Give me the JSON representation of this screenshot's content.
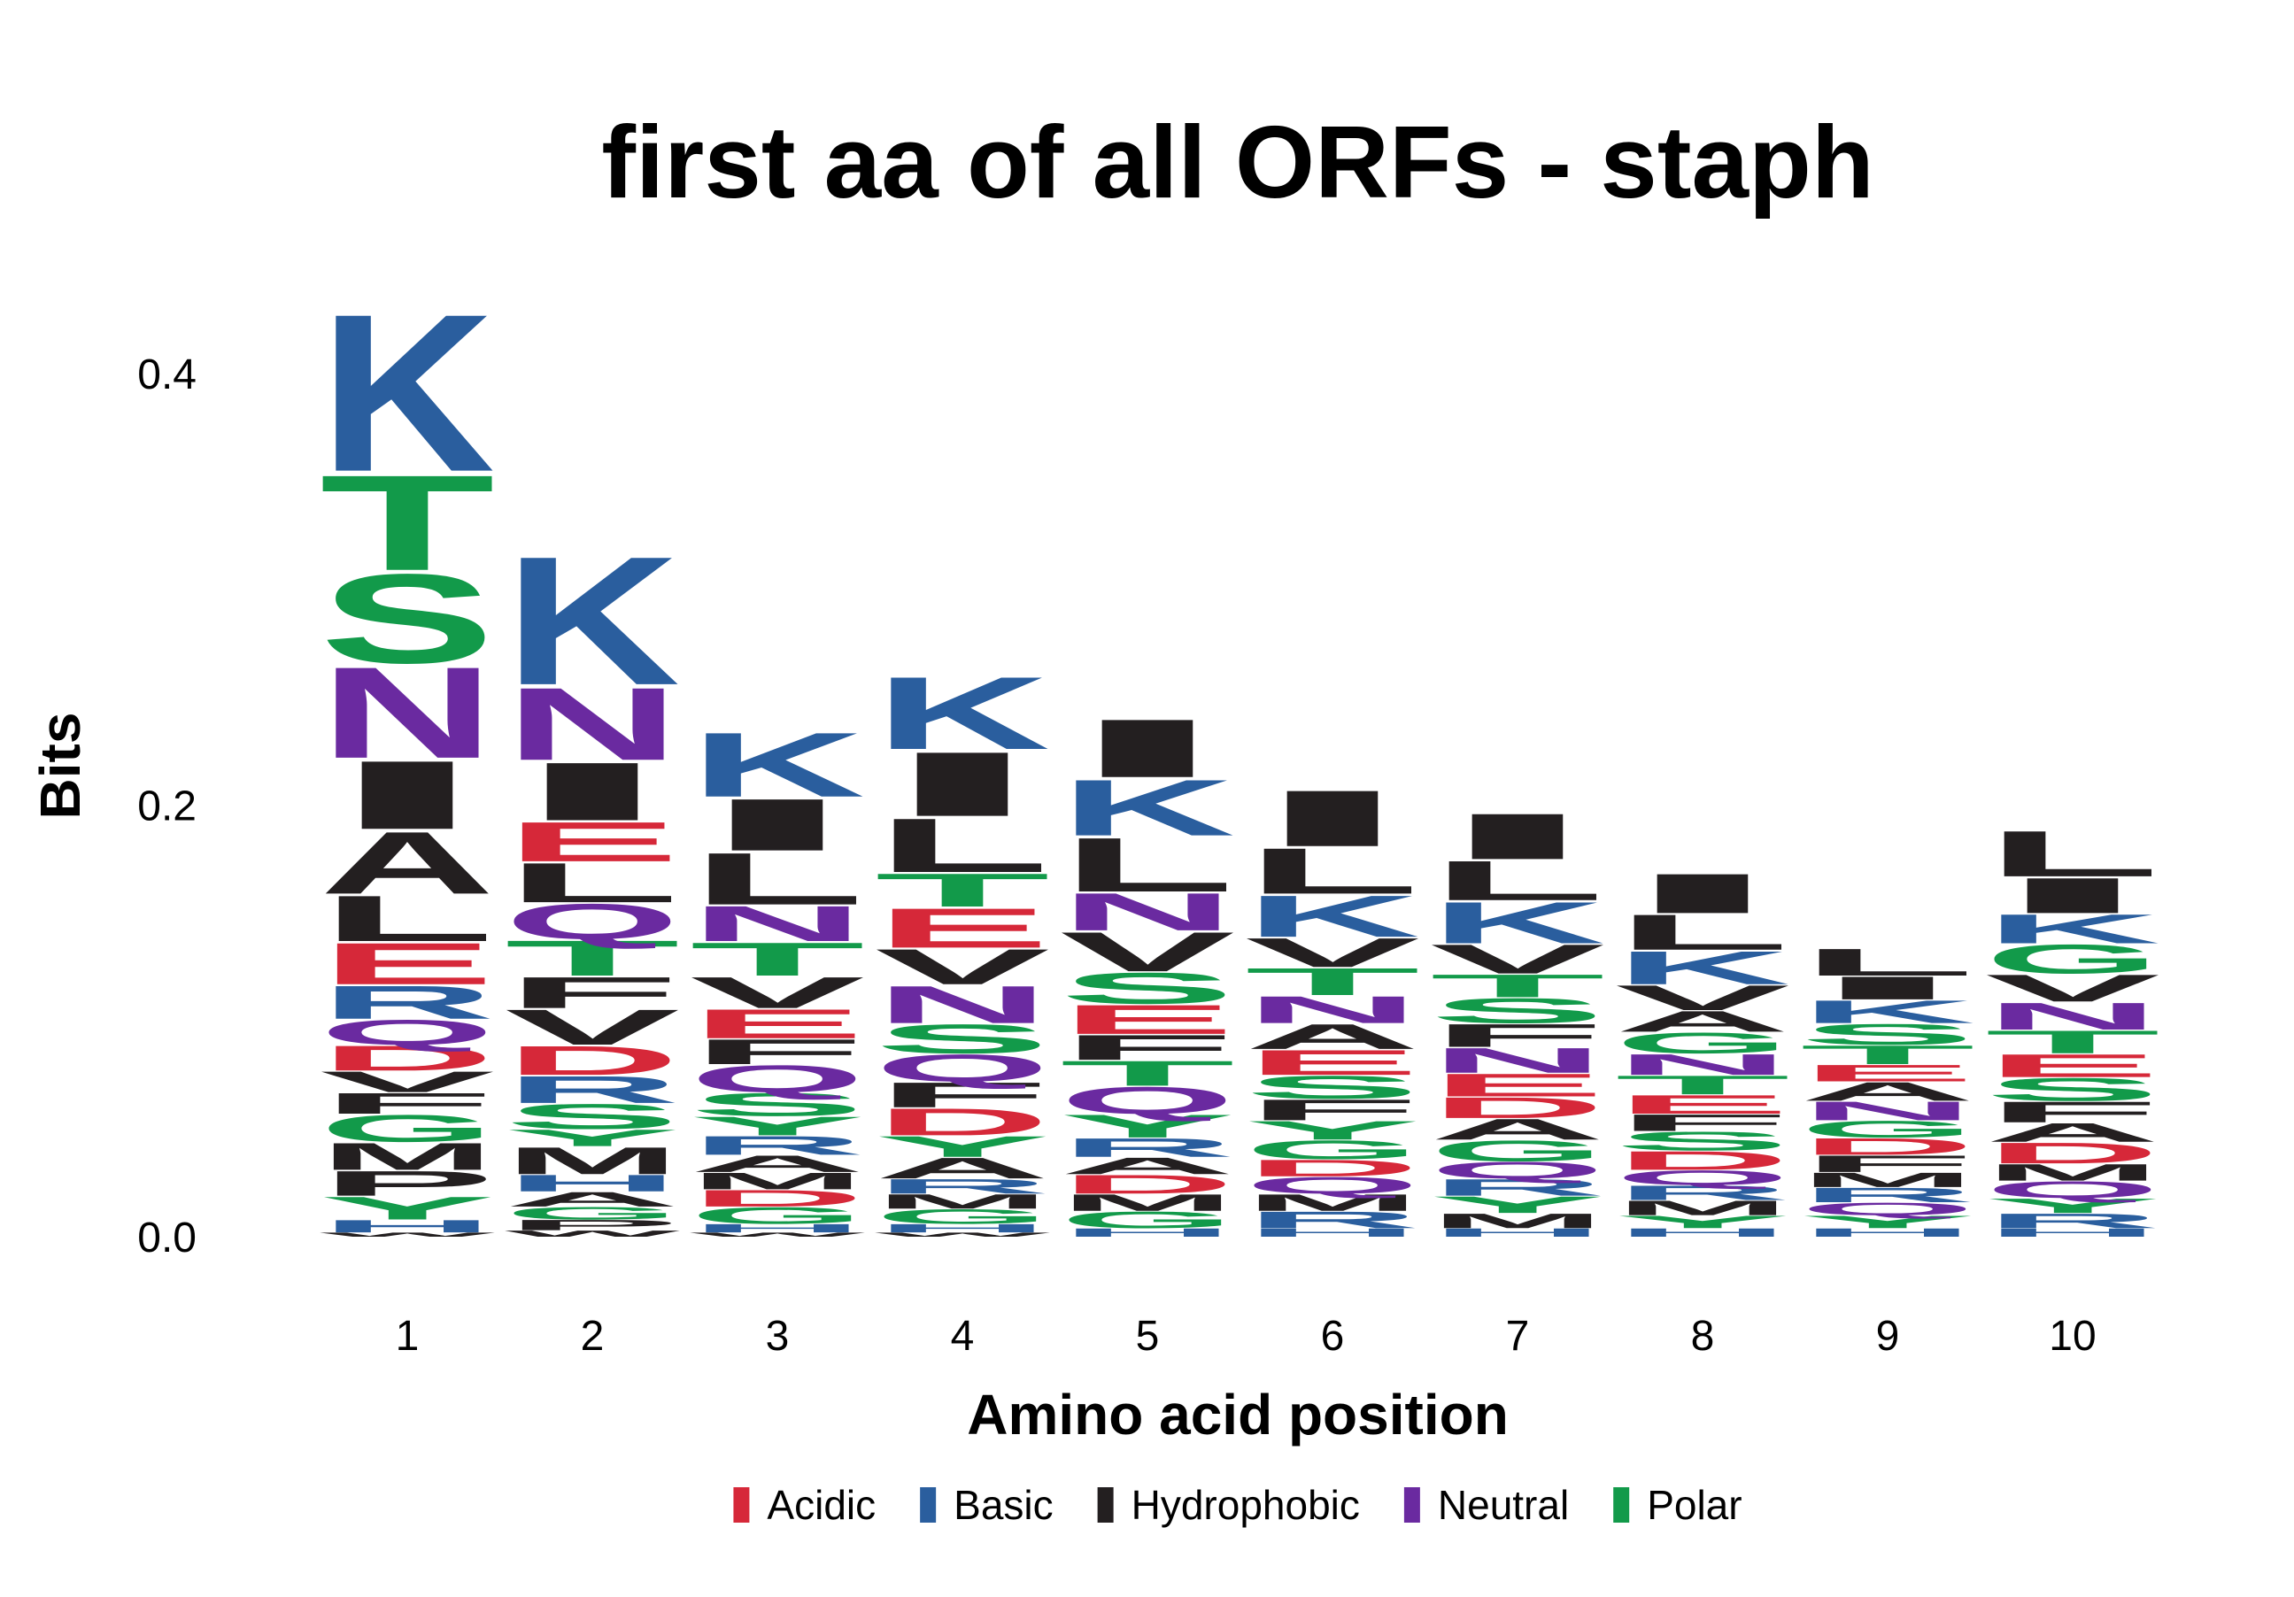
{
  "chart_data": {
    "type": "sequence-logo",
    "title": "first aa of all ORFs - staph",
    "xlabel": "Amino acid position",
    "ylabel": "Bits",
    "ylim": [
      0,
      0.45
    ],
    "yticks": [
      0.0,
      0.2,
      0.4
    ],
    "ytick_labels": [
      "0.0",
      "0.2",
      "0.4"
    ],
    "categories": [
      "1",
      "2",
      "3",
      "4",
      "5",
      "6",
      "7",
      "8",
      "9",
      "10"
    ],
    "legend": {
      "placement": "bottom",
      "entries": [
        {
          "label": "Acidic",
          "color": "#d62839"
        },
        {
          "label": "Basic",
          "color": "#2a5e9e"
        },
        {
          "label": "Hydrophobic",
          "color": "#231f20"
        },
        {
          "label": "Neutral",
          "color": "#6a2aa0"
        },
        {
          "label": "Polar",
          "color": "#129a4a"
        }
      ]
    },
    "residue_class": {
      "D": "Acidic",
      "E": "Acidic",
      "K": "Basic",
      "R": "Basic",
      "H": "Basic",
      "A": "Hydrophobic",
      "I": "Hydrophobic",
      "L": "Hydrophobic",
      "M": "Hydrophobic",
      "F": "Hydrophobic",
      "P": "Hydrophobic",
      "V": "Hydrophobic",
      "W": "Hydrophobic",
      "N": "Neutral",
      "Q": "Neutral",
      "S": "Polar",
      "T": "Polar",
      "G": "Polar",
      "Y": "Polar",
      "C": "Polar"
    },
    "positions": [
      {
        "x": "1",
        "letters": [
          {
            "aa": "W",
            "bits": 0.002
          },
          {
            "aa": "H",
            "bits": 0.006
          },
          {
            "aa": "Y",
            "bits": 0.011
          },
          {
            "aa": "P",
            "bits": 0.012
          },
          {
            "aa": "M",
            "bits": 0.013
          },
          {
            "aa": "G",
            "bits": 0.013
          },
          {
            "aa": "F",
            "bits": 0.01
          },
          {
            "aa": "V",
            "bits": 0.01
          },
          {
            "aa": "D",
            "bits": 0.012
          },
          {
            "aa": "Q",
            "bits": 0.012
          },
          {
            "aa": "R",
            "bits": 0.016
          },
          {
            "aa": "E",
            "bits": 0.02
          },
          {
            "aa": "L",
            "bits": 0.022
          },
          {
            "aa": "A",
            "bits": 0.03
          },
          {
            "aa": "I",
            "bits": 0.033
          },
          {
            "aa": "N",
            "bits": 0.044
          },
          {
            "aa": "S",
            "bits": 0.043
          },
          {
            "aa": "T",
            "bits": 0.046
          },
          {
            "aa": "K",
            "bits": 0.076
          }
        ]
      },
      {
        "x": "2",
        "letters": [
          {
            "aa": "W",
            "bits": 0.003
          },
          {
            "aa": "P",
            "bits": 0.005
          },
          {
            "aa": "G",
            "bits": 0.006
          },
          {
            "aa": "A",
            "bits": 0.007
          },
          {
            "aa": "H",
            "bits": 0.008
          },
          {
            "aa": "M",
            "bits": 0.013
          },
          {
            "aa": "Y",
            "bits": 0.008
          },
          {
            "aa": "S",
            "bits": 0.012
          },
          {
            "aa": "R",
            "bits": 0.013
          },
          {
            "aa": "D",
            "bits": 0.014
          },
          {
            "aa": "V",
            "bits": 0.017
          },
          {
            "aa": "F",
            "bits": 0.015
          },
          {
            "aa": "T",
            "bits": 0.017
          },
          {
            "aa": "Q",
            "bits": 0.017
          },
          {
            "aa": "L",
            "bits": 0.019
          },
          {
            "aa": "E",
            "bits": 0.019
          },
          {
            "aa": "I",
            "bits": 0.028
          },
          {
            "aa": "N",
            "bits": 0.035
          },
          {
            "aa": "K",
            "bits": 0.062
          }
        ]
      },
      {
        "x": "3",
        "letters": [
          {
            "aa": "W",
            "bits": 0.002
          },
          {
            "aa": "H",
            "bits": 0.004
          },
          {
            "aa": "G",
            "bits": 0.008
          },
          {
            "aa": "D",
            "bits": 0.008
          },
          {
            "aa": "M",
            "bits": 0.008
          },
          {
            "aa": "A",
            "bits": 0.008
          },
          {
            "aa": "R",
            "bits": 0.009
          },
          {
            "aa": "Y",
            "bits": 0.009
          },
          {
            "aa": "S",
            "bits": 0.011
          },
          {
            "aa": "Q",
            "bits": 0.013
          },
          {
            "aa": "F",
            "bits": 0.012
          },
          {
            "aa": "E",
            "bits": 0.014
          },
          {
            "aa": "V",
            "bits": 0.015
          },
          {
            "aa": "T",
            "bits": 0.016
          },
          {
            "aa": "N",
            "bits": 0.017
          },
          {
            "aa": "L",
            "bits": 0.025
          },
          {
            "aa": "I",
            "bits": 0.025
          },
          {
            "aa": "K",
            "bits": 0.031
          }
        ]
      },
      {
        "x": "4",
        "letters": [
          {
            "aa": "W",
            "bits": 0.002
          },
          {
            "aa": "H",
            "bits": 0.004
          },
          {
            "aa": "G",
            "bits": 0.007
          },
          {
            "aa": "M",
            "bits": 0.007
          },
          {
            "aa": "R",
            "bits": 0.007
          },
          {
            "aa": "A",
            "bits": 0.01
          },
          {
            "aa": "Y",
            "bits": 0.01
          },
          {
            "aa": "D",
            "bits": 0.013
          },
          {
            "aa": "F",
            "bits": 0.012
          },
          {
            "aa": "Q",
            "bits": 0.013
          },
          {
            "aa": "S",
            "bits": 0.014
          },
          {
            "aa": "N",
            "bits": 0.018
          },
          {
            "aa": "V",
            "bits": 0.017
          },
          {
            "aa": "E",
            "bits": 0.019
          },
          {
            "aa": "T",
            "bits": 0.016
          },
          {
            "aa": "L",
            "bits": 0.026
          },
          {
            "aa": "I",
            "bits": 0.031
          },
          {
            "aa": "K",
            "bits": 0.035
          }
        ]
      },
      {
        "x": "5",
        "letters": [
          {
            "aa": "H",
            "bits": 0.004
          },
          {
            "aa": "G",
            "bits": 0.008
          },
          {
            "aa": "M",
            "bits": 0.008
          },
          {
            "aa": "D",
            "bits": 0.009
          },
          {
            "aa": "A",
            "bits": 0.008
          },
          {
            "aa": "R",
            "bits": 0.009
          },
          {
            "aa": "Y",
            "bits": 0.011
          },
          {
            "aa": "Q",
            "bits": 0.013
          },
          {
            "aa": "T",
            "bits": 0.012
          },
          {
            "aa": "F",
            "bits": 0.012
          },
          {
            "aa": "E",
            "bits": 0.014
          },
          {
            "aa": "S",
            "bits": 0.015
          },
          {
            "aa": "V",
            "bits": 0.019
          },
          {
            "aa": "N",
            "bits": 0.018
          },
          {
            "aa": "L",
            "bits": 0.026
          },
          {
            "aa": "K",
            "bits": 0.027
          },
          {
            "aa": "I",
            "bits": 0.028
          }
        ]
      },
      {
        "x": "6",
        "letters": [
          {
            "aa": "H",
            "bits": 0.004
          },
          {
            "aa": "R",
            "bits": 0.008
          },
          {
            "aa": "M",
            "bits": 0.008
          },
          {
            "aa": "Q",
            "bits": 0.008
          },
          {
            "aa": "D",
            "bits": 0.008
          },
          {
            "aa": "G",
            "bits": 0.009
          },
          {
            "aa": "Y",
            "bits": 0.009
          },
          {
            "aa": "F",
            "bits": 0.01
          },
          {
            "aa": "S",
            "bits": 0.011
          },
          {
            "aa": "E",
            "bits": 0.012
          },
          {
            "aa": "A",
            "bits": 0.012
          },
          {
            "aa": "N",
            "bits": 0.013
          },
          {
            "aa": "T",
            "bits": 0.013
          },
          {
            "aa": "V",
            "bits": 0.014
          },
          {
            "aa": "K",
            "bits": 0.02
          },
          {
            "aa": "L",
            "bits": 0.022
          },
          {
            "aa": "I",
            "bits": 0.027
          }
        ]
      },
      {
        "x": "7",
        "letters": [
          {
            "aa": "H",
            "bits": 0.004
          },
          {
            "aa": "M",
            "bits": 0.007
          },
          {
            "aa": "Y",
            "bits": 0.008
          },
          {
            "aa": "R",
            "bits": 0.008
          },
          {
            "aa": "Q",
            "bits": 0.008
          },
          {
            "aa": "G",
            "bits": 0.01
          },
          {
            "aa": "A",
            "bits": 0.01
          },
          {
            "aa": "D",
            "bits": 0.01
          },
          {
            "aa": "E",
            "bits": 0.011
          },
          {
            "aa": "N",
            "bits": 0.012
          },
          {
            "aa": "F",
            "bits": 0.011
          },
          {
            "aa": "S",
            "bits": 0.012
          },
          {
            "aa": "T",
            "bits": 0.011
          },
          {
            "aa": "V",
            "bits": 0.014
          },
          {
            "aa": "K",
            "bits": 0.02
          },
          {
            "aa": "L",
            "bits": 0.019
          },
          {
            "aa": "I",
            "bits": 0.022
          }
        ]
      },
      {
        "x": "8",
        "letters": [
          {
            "aa": "H",
            "bits": 0.004
          },
          {
            "aa": "Y",
            "bits": 0.006
          },
          {
            "aa": "M",
            "bits": 0.007
          },
          {
            "aa": "R",
            "bits": 0.007
          },
          {
            "aa": "Q",
            "bits": 0.007
          },
          {
            "aa": "D",
            "bits": 0.009
          },
          {
            "aa": "S",
            "bits": 0.009
          },
          {
            "aa": "F",
            "bits": 0.008
          },
          {
            "aa": "E",
            "bits": 0.009
          },
          {
            "aa": "T",
            "bits": 0.009
          },
          {
            "aa": "N",
            "bits": 0.01
          },
          {
            "aa": "G",
            "bits": 0.01
          },
          {
            "aa": "A",
            "bits": 0.01
          },
          {
            "aa": "V",
            "bits": 0.012
          },
          {
            "aa": "K",
            "bits": 0.016
          },
          {
            "aa": "L",
            "bits": 0.017
          },
          {
            "aa": "I",
            "bits": 0.019
          }
        ]
      },
      {
        "x": "9",
        "letters": [
          {
            "aa": "H",
            "bits": 0.004
          },
          {
            "aa": "Y",
            "bits": 0.006
          },
          {
            "aa": "Q",
            "bits": 0.006
          },
          {
            "aa": "R",
            "bits": 0.007
          },
          {
            "aa": "M",
            "bits": 0.007
          },
          {
            "aa": "F",
            "bits": 0.008
          },
          {
            "aa": "D",
            "bits": 0.008
          },
          {
            "aa": "G",
            "bits": 0.008
          },
          {
            "aa": "N",
            "bits": 0.009
          },
          {
            "aa": "A",
            "bits": 0.009
          },
          {
            "aa": "E",
            "bits": 0.008
          },
          {
            "aa": "T",
            "bits": 0.009
          },
          {
            "aa": "S",
            "bits": 0.01
          },
          {
            "aa": "K",
            "bits": 0.011
          },
          {
            "aa": "I",
            "bits": 0.011
          },
          {
            "aa": "L",
            "bits": 0.013
          }
        ]
      },
      {
        "x": "10",
        "letters": [
          {
            "aa": "H",
            "bits": 0.004
          },
          {
            "aa": "R",
            "bits": 0.007
          },
          {
            "aa": "Y",
            "bits": 0.007
          },
          {
            "aa": "Q",
            "bits": 0.008
          },
          {
            "aa": "M",
            "bits": 0.008
          },
          {
            "aa": "D",
            "bits": 0.01
          },
          {
            "aa": "A",
            "bits": 0.009
          },
          {
            "aa": "F",
            "bits": 0.01
          },
          {
            "aa": "S",
            "bits": 0.011
          },
          {
            "aa": "E",
            "bits": 0.011
          },
          {
            "aa": "T",
            "bits": 0.011
          },
          {
            "aa": "N",
            "bits": 0.013
          },
          {
            "aa": "V",
            "bits": 0.013
          },
          {
            "aa": "G",
            "bits": 0.014
          },
          {
            "aa": "K",
            "bits": 0.014
          },
          {
            "aa": "I",
            "bits": 0.017
          },
          {
            "aa": "L",
            "bits": 0.022
          }
        ]
      }
    ]
  }
}
